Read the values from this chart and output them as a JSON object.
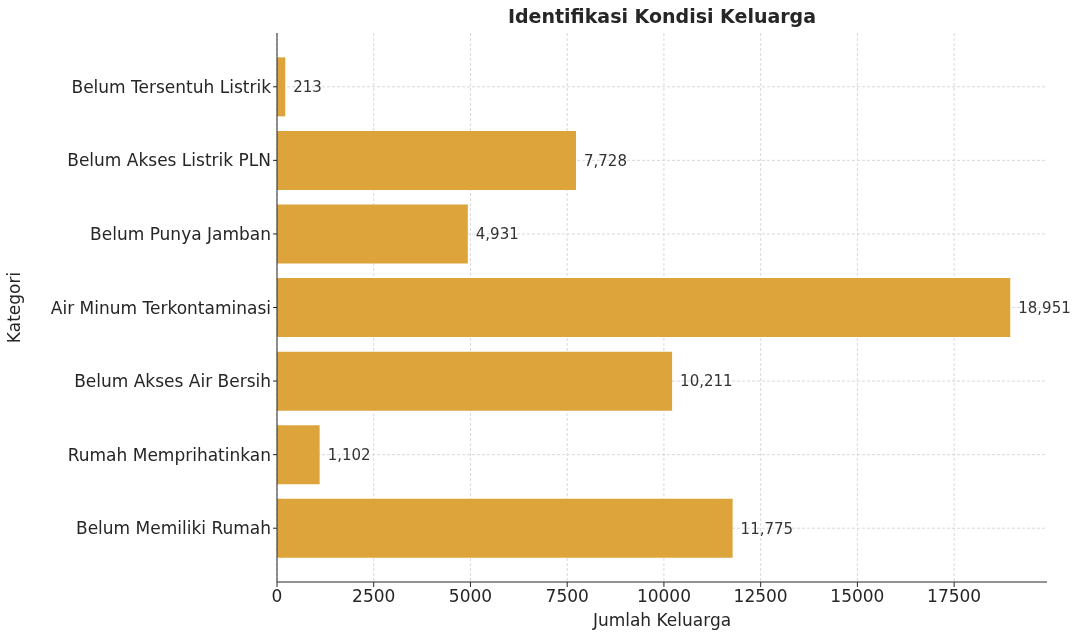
{
  "chart_data": {
    "type": "bar",
    "orientation": "horizontal",
    "title": "Identifikasi Kondisi Keluarga",
    "xlabel": "Jumlah Keluarga",
    "ylabel": "Kategori",
    "categories": [
      "Belum Tersentuh Listrik",
      "Belum Akses Listrik PLN",
      "Belum Punya Jamban",
      "Air Minum Terkontaminasi",
      "Belum Akses Air Bersih",
      "Rumah Memprihatinkan",
      "Belum Memiliki Rumah"
    ],
    "values": [
      213,
      7728,
      4931,
      18951,
      10211,
      1102,
      11775
    ],
    "value_labels": [
      "213",
      "7,728",
      "4,931",
      "18,951",
      "10,211",
      "1,102",
      "11,775"
    ],
    "color": "#dca43b",
    "xlim": [
      0,
      19900
    ],
    "xticks": [
      0,
      2500,
      5000,
      7500,
      10000,
      12500,
      15000,
      17500
    ],
    "grid": true
  }
}
